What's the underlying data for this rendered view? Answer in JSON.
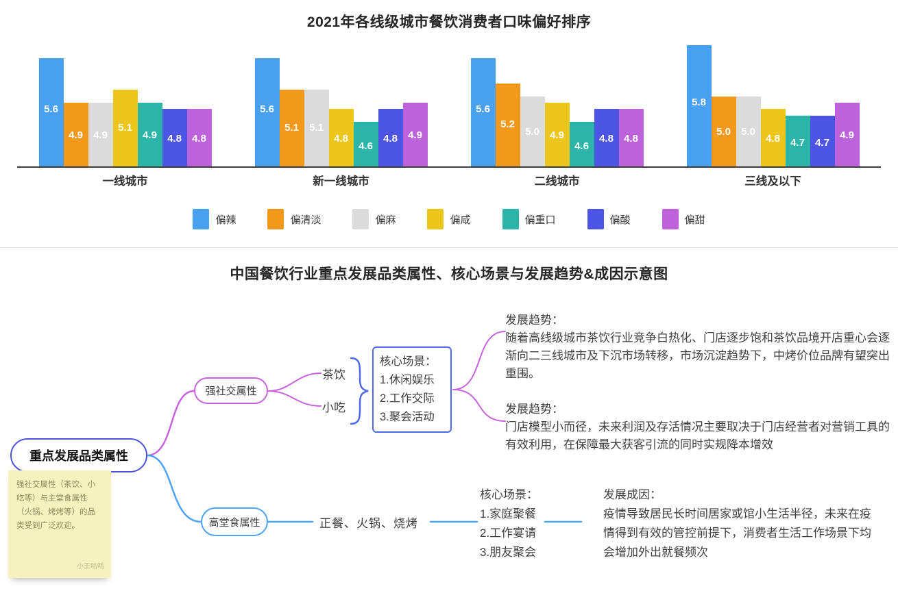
{
  "chart_data": {
    "type": "bar",
    "title": "2021年各线级城市餐饮消费者口味偏好排序",
    "categories": [
      "一线城市",
      "新一线城市",
      "二线城市",
      "三线及以下"
    ],
    "series": [
      {
        "name": "偏辣",
        "color": "#4aa0f0",
        "values": [
          5.6,
          5.6,
          5.6,
          5.8
        ]
      },
      {
        "name": "偏清淡",
        "color": "#f2991b",
        "values": [
          4.9,
          5.1,
          5.2,
          5.0
        ]
      },
      {
        "name": "偏麻",
        "color": "#dbdbdb",
        "values": [
          4.9,
          5.1,
          5.0,
          5.0
        ]
      },
      {
        "name": "偏咸",
        "color": "#edc61c",
        "values": [
          5.1,
          4.8,
          4.9,
          4.8
        ]
      },
      {
        "name": "偏重口",
        "color": "#2bb5a9",
        "values": [
          4.9,
          4.6,
          4.6,
          4.7
        ]
      },
      {
        "name": "偏酸",
        "color": "#4c55e6",
        "values": [
          4.8,
          4.8,
          4.8,
          4.7
        ]
      },
      {
        "name": "偏甜",
        "color": "#bc63dc",
        "values": [
          4.8,
          4.9,
          4.8,
          4.9
        ]
      }
    ],
    "value_label_color": "#ffffff",
    "axis_baseline_color": "#3c3c3c",
    "scale_min": 3.9,
    "grid": false,
    "legend_position": "bottom"
  },
  "diagram": {
    "title": "中国餐饮行业重点发展品类属性、核心场景与发展趋势&成因示意图",
    "root_label": "重点发展品类属性",
    "note": {
      "text": "强社交属性（茶饮、小吃等）与主堂食属性（火锅、烤烤等）的品类受到广泛欢迎。",
      "signature": "小王咕咕"
    },
    "branch_social": {
      "label": "强社交属性",
      "child_tea": "茶饮",
      "child_snack": "小吃",
      "scenes_title": "核心场景：",
      "scenes_items": [
        "1.休闲娱乐",
        "2.工作交际",
        "3.聚会活动"
      ],
      "trend1_heading": "发展趋势：",
      "trend1_body": "随着高线级城市茶饮行业竞争白热化、门店逐步饱和茶饮品境开店重心会逐渐向二三线城市及下沉市场转移，市场沉淀趋势下，中烤价位品牌有望突出重围。",
      "trend2_heading": "发展趋势：",
      "trend2_body": "门店模型小而径，未来利润及存活情况主要取决于门店经营者对营销工具的有效利用，在保障最大获客引流的同时实规降本增效"
    },
    "branch_dining": {
      "label": "高堂食属性",
      "child": "正餐、火锅、烧烤",
      "scenes_title": "核心场景：",
      "scenes_items": [
        "1.家庭聚餐",
        "2.工作宴请",
        "3.朋友聚会"
      ],
      "cause_heading": "发展成因：",
      "cause_body": "疫情导致居民长时间居家或馆小生活半径，未来在疫情得到有效的管控前提下，消费者生活工作场景下均会增加外出就餐频次"
    },
    "connector_colors": {
      "purple": "#c863de",
      "blue": "#4da2f5",
      "indigo": "#4d68e8"
    }
  }
}
